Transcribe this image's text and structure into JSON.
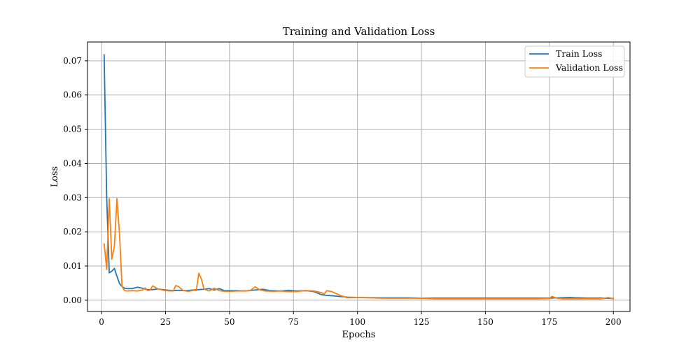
{
  "chart_data": {
    "type": "line",
    "title": "Training and Validation Loss",
    "xlabel": "Epochs",
    "ylabel": "Loss",
    "xlim": [
      -5.5,
      206.5
    ],
    "ylim": [
      -0.0033,
      0.0755
    ],
    "xticks": [
      0,
      25,
      50,
      75,
      100,
      125,
      150,
      175,
      200
    ],
    "yticks": [
      0.0,
      0.01,
      0.02,
      0.03,
      0.04,
      0.05,
      0.06,
      0.07
    ],
    "ytick_labels": [
      "0.00",
      "0.01",
      "0.02",
      "0.03",
      "0.04",
      "0.05",
      "0.06",
      "0.07"
    ],
    "grid": true,
    "legend_position": "top-right",
    "series": [
      {
        "name": "Train Loss",
        "color": "#1f77b4",
        "x": [
          1,
          2,
          3,
          4,
          5,
          6,
          7,
          8,
          9,
          10,
          12,
          14,
          16,
          18,
          20,
          22,
          25,
          28,
          30,
          33,
          36,
          38,
          40,
          42,
          44,
          46,
          48,
          50,
          53,
          56,
          60,
          63,
          66,
          70,
          73,
          76,
          80,
          83,
          86,
          88,
          90,
          93,
          96,
          100,
          110,
          115,
          120,
          125,
          130,
          140,
          150,
          155,
          160,
          165,
          170,
          175,
          177,
          180,
          183,
          185,
          190,
          195,
          198,
          200
        ],
        "y": [
          0.0718,
          0.03,
          0.008,
          0.0085,
          0.0093,
          0.007,
          0.0049,
          0.004,
          0.0035,
          0.0034,
          0.0034,
          0.0038,
          0.0035,
          0.0031,
          0.0031,
          0.0033,
          0.003,
          0.0028,
          0.0029,
          0.0028,
          0.003,
          0.0031,
          0.0032,
          0.0034,
          0.003,
          0.0034,
          0.0028,
          0.0028,
          0.0028,
          0.0027,
          0.003,
          0.0032,
          0.0028,
          0.0027,
          0.0029,
          0.0027,
          0.0028,
          0.0025,
          0.0016,
          0.0014,
          0.0013,
          0.0011,
          0.0009,
          0.0008,
          0.0007,
          0.0007,
          0.0007,
          0.0006,
          0.0006,
          0.0006,
          0.0006,
          0.0006,
          0.0006,
          0.0006,
          0.0006,
          0.0006,
          0.0007,
          0.0007,
          0.0008,
          0.0007,
          0.0006,
          0.0006,
          0.0006,
          0.0005
        ]
      },
      {
        "name": "Validation Loss",
        "color": "#ff7f0e",
        "x": [
          1,
          2,
          3,
          4,
          5,
          6,
          7,
          8,
          9,
          10,
          12,
          14,
          16,
          17,
          18,
          19,
          20,
          22,
          25,
          28,
          29,
          30,
          32,
          34,
          36,
          37,
          38,
          39,
          40,
          42,
          44,
          46,
          48,
          50,
          53,
          56,
          58,
          60,
          62,
          64,
          67,
          70,
          73,
          76,
          78,
          80,
          83,
          86,
          87,
          88,
          90,
          93,
          96,
          100,
          110,
          120,
          125,
          130,
          140,
          150,
          160,
          170,
          175,
          176,
          178,
          180,
          185,
          190,
          195,
          198,
          200
        ],
        "y": [
          0.0165,
          0.009,
          0.0297,
          0.012,
          0.0158,
          0.0297,
          0.0195,
          0.004,
          0.0028,
          0.0027,
          0.0028,
          0.0027,
          0.003,
          0.0036,
          0.0028,
          0.003,
          0.0042,
          0.0033,
          0.0028,
          0.0027,
          0.0043,
          0.004,
          0.0028,
          0.0026,
          0.0029,
          0.0028,
          0.0079,
          0.0062,
          0.0033,
          0.0027,
          0.0035,
          0.0028,
          0.0026,
          0.0026,
          0.0027,
          0.0027,
          0.0028,
          0.0039,
          0.003,
          0.0027,
          0.0026,
          0.0027,
          0.0025,
          0.0025,
          0.0027,
          0.0028,
          0.0027,
          0.0022,
          0.0018,
          0.0028,
          0.0025,
          0.0015,
          0.0007,
          0.0008,
          0.0006,
          0.0006,
          0.0006,
          0.0004,
          0.0004,
          0.0004,
          0.0004,
          0.0004,
          0.0005,
          0.0011,
          0.0006,
          0.0004,
          0.0004,
          0.0004,
          0.0004,
          0.0008,
          0.0004
        ]
      }
    ]
  }
}
